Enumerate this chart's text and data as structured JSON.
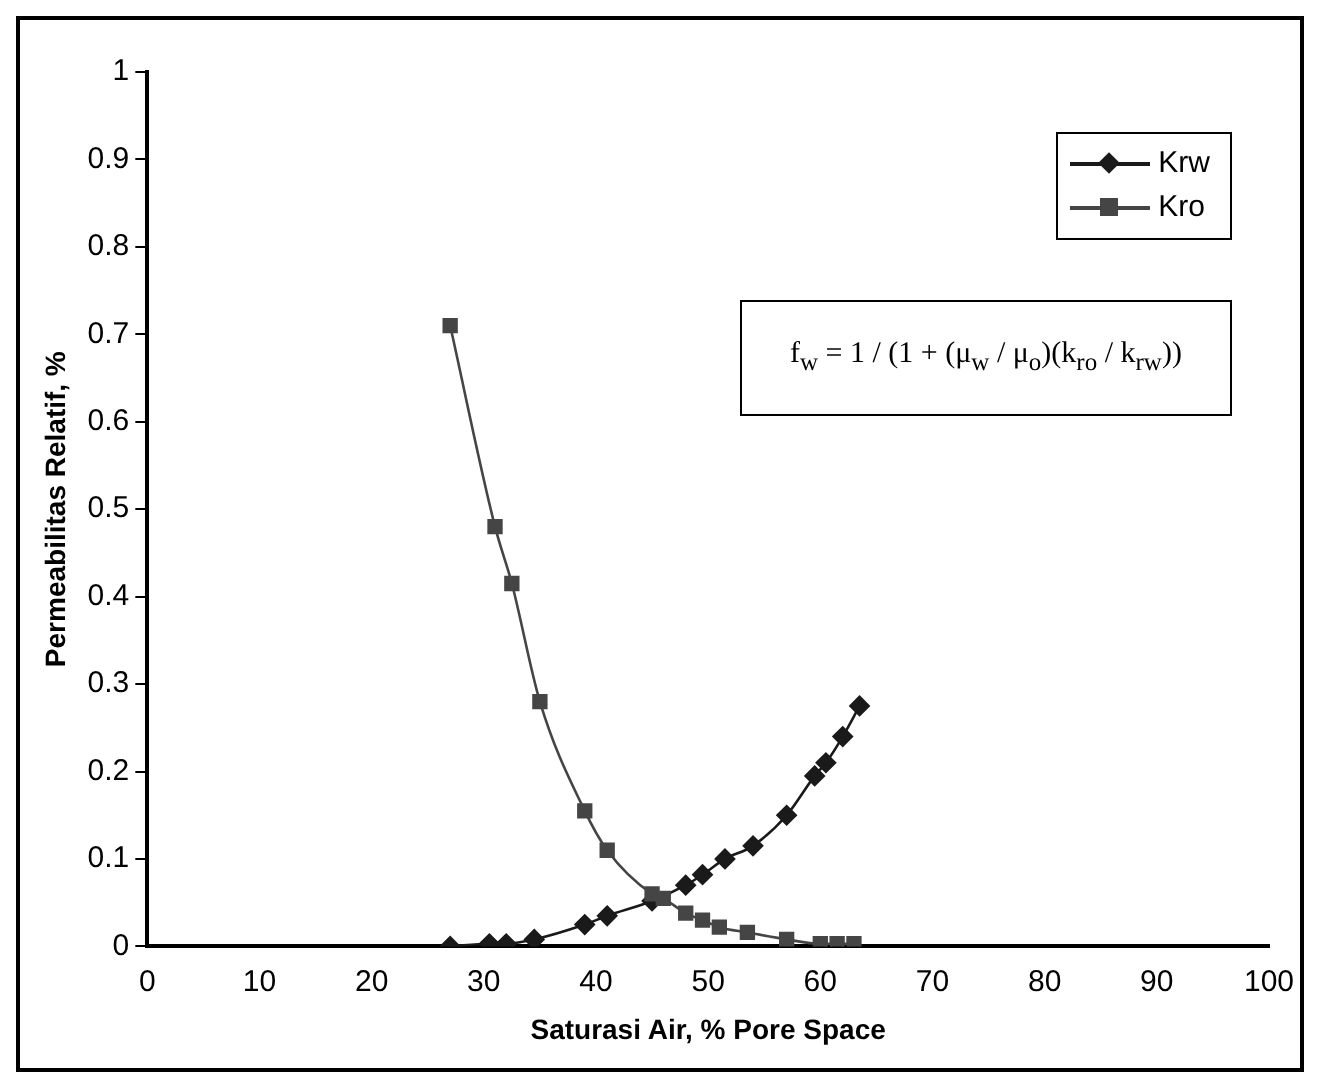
{
  "chart_data": {
    "type": "line",
    "xlabel": "Saturasi Air, % Pore Space",
    "ylabel": "Permeabilitas Relatif, %",
    "xlim": [
      0,
      100
    ],
    "xticks": [
      0,
      10,
      20,
      30,
      40,
      50,
      60,
      70,
      80,
      90,
      100
    ],
    "ylim": [
      0,
      1
    ],
    "yticks": [
      0,
      0.1,
      0.2,
      0.3,
      0.4,
      0.5,
      0.6,
      0.7,
      0.8,
      0.9,
      1
    ],
    "grid": false,
    "legend": "top right",
    "annotations": [
      "f$_{w}$ = 1 / (1 + (μ$_{w}$ / μ$_{o}$)(k$_{ro}$ / k$_{rw}$))"
    ],
    "series": [
      {
        "name": "Krw",
        "color": "#1a1a1a",
        "marker": "diamond",
        "x": [
          27,
          30.5,
          32,
          34.5,
          39,
          41,
          45,
          48,
          49.5,
          51.5,
          54,
          57,
          59.5,
          60.5,
          62,
          63.5
        ],
        "values": [
          0,
          0.003,
          0.003,
          0.008,
          0.025,
          0.035,
          0.052,
          0.07,
          0.082,
          0.1,
          0.115,
          0.15,
          0.195,
          0.21,
          0.24,
          0.275
        ]
      },
      {
        "name": "Kro",
        "color": "#454545",
        "marker": "square",
        "x": [
          27,
          31,
          32.5,
          35,
          39,
          41,
          45,
          46,
          48,
          49.5,
          51,
          53.5,
          57,
          60,
          61.5,
          63
        ],
        "values": [
          0.71,
          0.48,
          0.415,
          0.28,
          0.155,
          0.11,
          0.06,
          0.055,
          0.038,
          0.03,
          0.022,
          0.016,
          0.008,
          0.003,
          0.003,
          0.003
        ]
      }
    ]
  }
}
